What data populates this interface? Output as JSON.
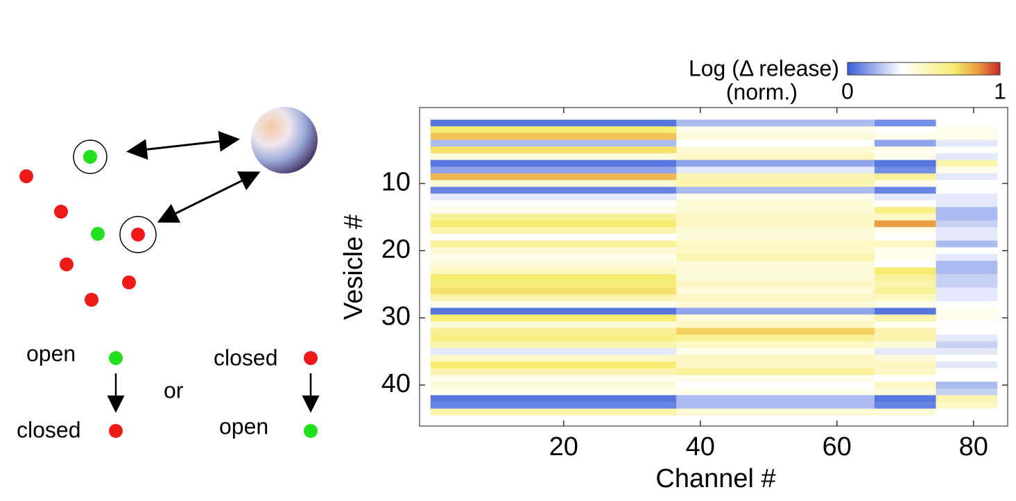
{
  "diagram": {
    "open_top": "open",
    "closed_bottom": "closed",
    "or": "or",
    "closed_top": "closed",
    "open_bottom": "open"
  },
  "chart_data": {
    "type": "heatmap",
    "colorbar": {
      "label": "Log (Δ release)",
      "sublabel": "(norm.)",
      "ticks": [
        0,
        1
      ]
    },
    "colormap": [
      [
        0,
        "#3b5fd9"
      ],
      [
        0.35,
        "#ffffff"
      ],
      [
        0.7,
        "#f7ec72"
      ],
      [
        0.87,
        "#e8923a"
      ],
      [
        1,
        "#c4262a"
      ]
    ],
    "xlabel": "Channel #",
    "ylabel": "Vesicle #",
    "xlim": [
      -1.1,
      85
    ],
    "xticks": [
      20,
      40,
      60,
      80
    ],
    "ylim": [
      -1.3,
      46.1
    ],
    "y_reversed": true,
    "yticks": [
      10,
      20,
      30,
      40
    ],
    "xbins": [
      0.5,
      36.5,
      65.5,
      74.5,
      83.5
    ],
    "y": [
      1,
      2,
      3,
      4,
      5,
      6,
      7,
      8,
      9,
      10,
      11,
      12,
      13,
      14,
      15,
      16,
      17,
      18,
      19,
      20,
      21,
      22,
      23,
      24,
      25,
      26,
      27,
      28,
      29,
      30,
      31,
      32,
      33,
      34,
      35,
      36,
      37,
      38,
      39,
      40,
      41,
      42,
      43,
      44
    ],
    "values": [
      [
        0.05,
        0.2,
        0.1,
        0.35
      ],
      [
        0.7,
        0.4,
        0.35,
        0.4
      ],
      [
        0.78,
        0.45,
        0.4,
        0.4
      ],
      [
        0.2,
        0.35,
        0.15,
        0.3
      ],
      [
        0.72,
        0.45,
        0.4,
        0.35
      ],
      [
        0.45,
        0.5,
        0.4,
        0.3
      ],
      [
        0.05,
        0.15,
        0.05,
        0.55
      ],
      [
        0.15,
        0.3,
        0.1,
        0.4
      ],
      [
        0.8,
        0.55,
        0.6,
        0.3
      ],
      [
        0.45,
        0.55,
        0.4,
        0.35
      ],
      [
        0.08,
        0.2,
        0.08,
        0.35
      ],
      [
        0.3,
        0.4,
        0.3,
        0.3
      ],
      [
        0.35,
        0.45,
        0.35,
        0.3
      ],
      [
        0.4,
        0.45,
        0.65,
        0.2
      ],
      [
        0.6,
        0.5,
        0.5,
        0.2
      ],
      [
        0.7,
        0.5,
        0.85,
        0.25
      ],
      [
        0.55,
        0.45,
        0.4,
        0.3
      ],
      [
        0.35,
        0.45,
        0.35,
        0.3
      ],
      [
        0.6,
        0.5,
        0.5,
        0.2
      ],
      [
        0.45,
        0.5,
        0.4,
        0.35
      ],
      [
        0.4,
        0.55,
        0.4,
        0.3
      ],
      [
        0.45,
        0.45,
        0.35,
        0.2
      ],
      [
        0.5,
        0.45,
        0.7,
        0.2
      ],
      [
        0.7,
        0.45,
        0.6,
        0.25
      ],
      [
        0.68,
        0.5,
        0.55,
        0.25
      ],
      [
        0.72,
        0.45,
        0.6,
        0.3
      ],
      [
        0.55,
        0.5,
        0.5,
        0.3
      ],
      [
        0.4,
        0.45,
        0.4,
        0.35
      ],
      [
        0.05,
        0.15,
        0.05,
        0.4
      ],
      [
        0.7,
        0.45,
        0.55,
        0.4
      ],
      [
        0.45,
        0.5,
        0.4,
        0.35
      ],
      [
        0.6,
        0.75,
        0.55,
        0.35
      ],
      [
        0.65,
        0.6,
        0.55,
        0.3
      ],
      [
        0.55,
        0.5,
        0.45,
        0.25
      ],
      [
        0.3,
        0.4,
        0.3,
        0.3
      ],
      [
        0.5,
        0.5,
        0.45,
        0.35
      ],
      [
        0.7,
        0.5,
        0.5,
        0.3
      ],
      [
        0.55,
        0.6,
        0.5,
        0.35
      ],
      [
        0.4,
        0.4,
        0.35,
        0.35
      ],
      [
        0.45,
        0.35,
        0.5,
        0.2
      ],
      [
        0.4,
        0.4,
        0.45,
        0.25
      ],
      [
        0.05,
        0.2,
        0.05,
        0.55
      ],
      [
        0.08,
        0.2,
        0.08,
        0.5
      ],
      [
        0.55,
        0.45,
        0.45,
        0.35
      ]
    ]
  }
}
